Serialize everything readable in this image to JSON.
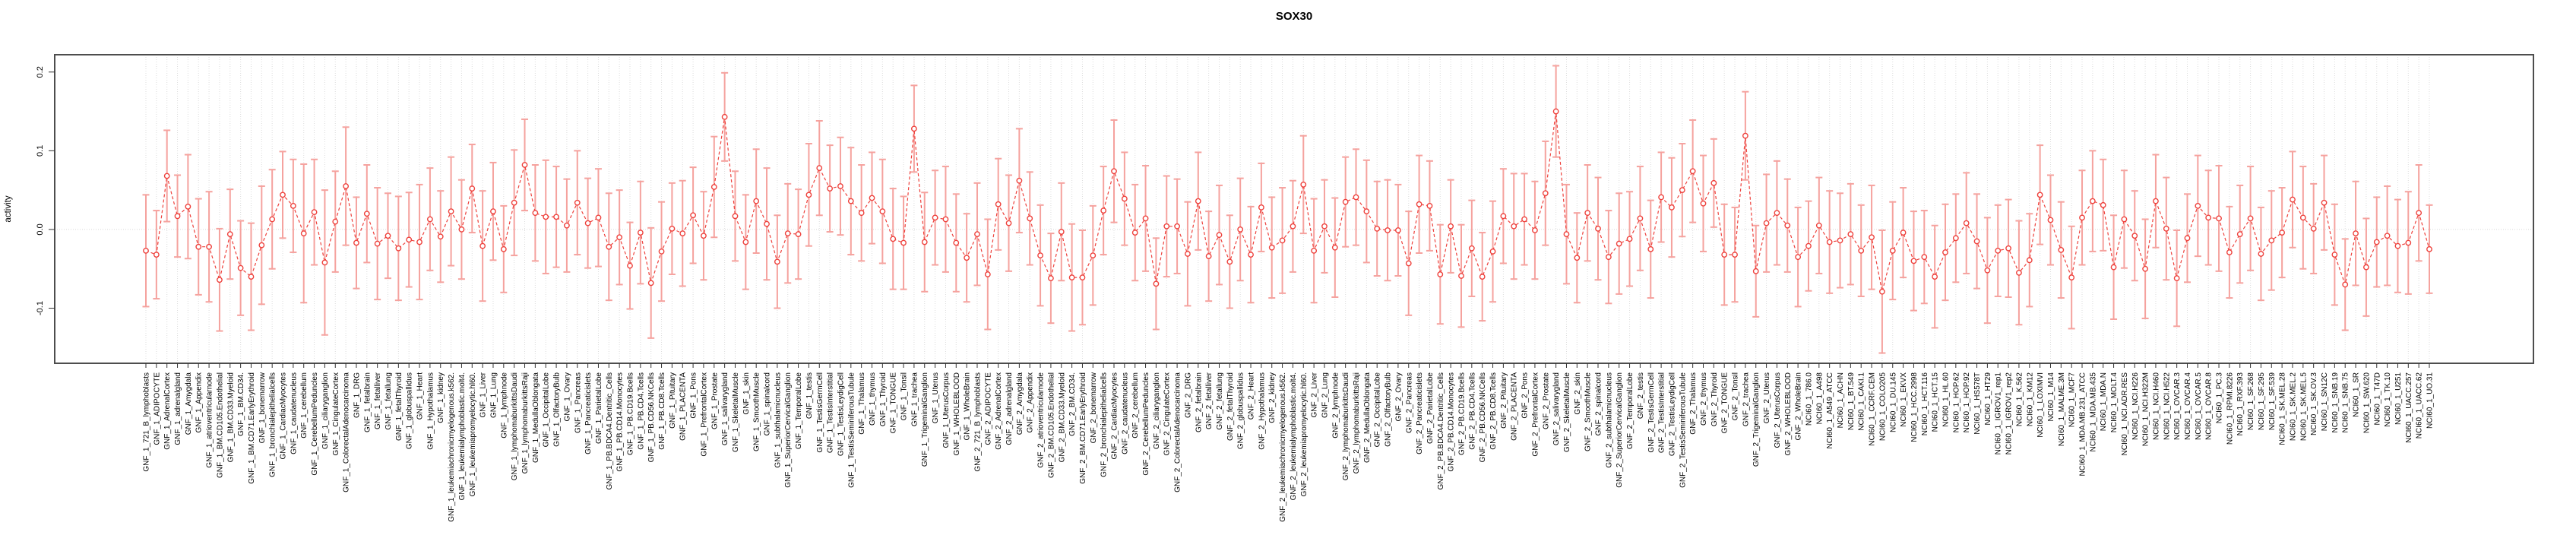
{
  "chart_data": {
    "type": "line",
    "title": "SOX30",
    "ylabel": "activity",
    "xlabel": "",
    "ylim": [
      -0.17,
      0.222
    ],
    "yticks": [
      -0.1,
      0.0,
      0.1,
      0.2
    ],
    "ytick_labels": [
      "-0.1",
      "0.0",
      "0.1",
      "0.2"
    ],
    "legend": "none",
    "grid": "dotted vertical line per category, dotted horizontal line at 0",
    "marker": "open-circle with symmetric error bars, dashed connecting line",
    "colors": {
      "point": "#ee413c",
      "line": "#ee413c",
      "errorbar": "#f5a29e",
      "grid": "#dcdcdc",
      "zero_line": "#d8d8d8",
      "axis": "#4d4d4d",
      "tick": "#333333",
      "text": "#000000",
      "background": "#ffffff"
    },
    "categories": [
      "GNF_1_721_B_lymphoblasts",
      "GNF_1_ADIPOCYTE",
      "GNF_1_AdrenalCortex",
      "GNF_1_adrenalgland",
      "GNF_1_Amygdala",
      "GNF_1_Appendix",
      "GNF_1_atrioventricularnode",
      "GNF_1_BM.CD105.Endothelial",
      "GNF_1_BM.CD33.Myeloid",
      "GNF_1_BM.CD34.",
      "GNF_1_BM.CD71.EarlyErythroid",
      "GNF_1_bonemarrow",
      "GNF_1_bronchialepithelialcells",
      "GNF_1_CardiacMyocytes",
      "GNF_1_caudatenucleus",
      "GNF_1_cerebellum",
      "GNF_1_CerebellumPeduncles",
      "GNF_1_ciliaryganglion",
      "GNF_1_CingulateCortex",
      "GNF_1_ColorectalAdenocarcinoma",
      "GNF_1_DRG",
      "GNF_1_fetalbrain",
      "GNF_1_fetalliver",
      "GNF_1_fetallung",
      "GNF_1_fetalThyroid",
      "GNF_1_globuspallidus",
      "GNF_1_Heart",
      "GNF_1_Hypothalamus",
      "GNF_1_kidney",
      "GNF_1_leukemiachronicmyelogenous.k562.",
      "GNF_1_leukemialymphoblastic.molt4.",
      "GNF_1_leukemiapromyelocytic.hl60.",
      "GNF_1_Liver",
      "GNF_1_Lung",
      "GNF_1_lymphnode",
      "GNF_1_lymphomaburkittsDaudi",
      "GNF_1_lymphomaburkittsRaji",
      "GNF_1_MedullaOblongata",
      "GNF_1_OccipitalLobe",
      "GNF_1_OlfactoryBulb",
      "GNF_1_Ovary",
      "GNF_1_Pancreas",
      "GNF_1_Pancreaticislets",
      "GNF_1_ParietalLobe",
      "GNF_1_PB.BDCA4.Dentritic_Cells",
      "GNF_1_PB.CD14.Monocytes",
      "GNF_1_PB.CD19.Bcells",
      "GNF_1_PB.CD4.Tcells",
      "GNF_1_PB.CD56.NKCells",
      "GNF_1_PB.CD8.Tcells",
      "GNF_1_Pituitary",
      "GNF_1_PLACENTA",
      "GNF_1_Pons",
      "GNF_1_PrefrontalCortex",
      "GNF_1_Prostate",
      "GNF_1_salivarygland",
      "GNF_1_SkeletalMuscle",
      "GNF_1_skin",
      "GNF_1_SmoothMuscle",
      "GNF_1_spinalcord",
      "GNF_1_subthalamicnucleus",
      "GNF_1_SuperiorCervicalGanglion",
      "GNF_1_TemporalLobe",
      "GNF_1_testis",
      "GNF_1_TestisGermCell",
      "GNF_1_TestisInterstitial",
      "GNF_1_TestisLeydigCell",
      "GNF_1_TestisSeminiferousTubule",
      "GNF_1_Thalamus",
      "GNF_1_thymus",
      "GNF_1_Thyroid",
      "GNF_1_TONGUE",
      "GNF_1_Tonsil",
      "GNF_1_trachea",
      "GNF_1_TrigeminalGanglion",
      "GNF_1_Uterus",
      "GNF_1_UterusCorpus",
      "GNF_1_WHOLEBLOOD",
      "GNF_1_WholeBrain",
      "GNF_2_721_B_lymphoblasts",
      "GNF_2_ADIPOCYTE",
      "GNF_2_AdrenalCortex",
      "GNF_2_adrenalgland",
      "GNF_2_Amygdala",
      "GNF_2_Appendix",
      "GNF_2_atrioventricularnode",
      "GNF_2_BM.CD105.Endothelial",
      "GNF_2_BM.CD33.Myeloid",
      "GNF_2_BM.CD34.",
      "GNF_2_BM.CD71.EarlyErythroid",
      "GNF_2_bonemarrow",
      "GNF_2_bronchialepithelialcells",
      "GNF_2_CardiacMyocytes",
      "GNF_2_caudatenucleus",
      "GNF_2_cerebellum",
      "GNF_2_CerebellumPeduncles",
      "GNF_2_ciliaryganglion",
      "GNF_2_CingulateCortex",
      "GNF_2_ColorectalAdenocarcinoma",
      "GNF_2_DRG",
      "GNF_2_fetalbrain",
      "GNF_2_fetalliver",
      "GNF_2_fetallung",
      "GNF_2_fetalThyroid",
      "GNF_2_globuspallidus",
      "GNF_2_Heart",
      "GNF_2_Hypothalamus",
      "GNF_2_kidney",
      "GNF_2_leukemiachronicmyelogenous.k562.",
      "GNF_2_leukemialymphoblastic.molt4.",
      "GNF_2_leukemiapromyelocytic.hl60.",
      "GNF_2_Liver",
      "GNF_2_Lung",
      "GNF_2_lymphnode",
      "GNF_2_lymphomaburkittsDaudi",
      "GNF_2_lymphomaburkittsRaji",
      "GNF_2_MedullaOblongata",
      "GNF_2_OccipitalLobe",
      "GNF_2_OlfactoryBulb",
      "GNF_2_Ovary",
      "GNF_2_Pancreas",
      "GNF_2_Pancreaticislets",
      "GNF_2_ParietalLobe",
      "GNF_2_PB.BDCA4.Dentritic_Cells",
      "GNF_2_PB.CD14.Monocytes",
      "GNF_2_PB.CD19.Bcells",
      "GNF_2_PB.CD4.Tcells",
      "GNF_2_PB.CD56.NKCells",
      "GNF_2_PB.CD8.Tcells",
      "GNF_2_Pituitary",
      "GNF_2_PLACENTA",
      "GNF_2_Pons",
      "GNF_2_PrefrontalCortex",
      "GNF_2_Prostate",
      "GNF_2_salivarygland",
      "GNF_2_SkeletalMuscle",
      "GNF_2_skin",
      "GNF_2_SmoothMuscle",
      "GNF_2_spinalcord",
      "GNF_2_subthalamicnucleus",
      "GNF_2_SuperiorCervicalGanglion",
      "GNF_2_TemporalLobe",
      "GNF_2_testis",
      "GNF_2_TestisGermCell",
      "GNF_2_TestisInterstitial",
      "GNF_2_TestisLeydigCell",
      "GNF_2_TestisSeminiferousTubule",
      "GNF_2_Thalamus",
      "GNF_2_thymus",
      "GNF_2_Thyroid",
      "GNF_2_TONGUE",
      "GNF_2_Tonsil",
      "GNF_2_trachea",
      "GNF_2_TrigeminalGanglion",
      "GNF_2_Uterus",
      "GNF_2_UterusCorpus",
      "GNF_2_WHOLEBLOOD",
      "GNF_2_WholeBrain",
      "NCI60_1_786.0",
      "NCI60_1_A498",
      "NCI60_1_A549_ATCC",
      "NCI60_1_ACHN",
      "NCI60_1_BT.549",
      "NCI60_1_CAKI.1",
      "NCI60_1_CCRF.CEM",
      "NCI60_1_COLO205",
      "NCI60_1_DU.145",
      "NCI60_1_EKVX",
      "NCI60_1_HCC.2998",
      "NCI60_1_HCT.116",
      "NCI60_1_HCT.15",
      "NCI60_1_HL.60",
      "NCI60_1_HOP.62",
      "NCI60_1_HOP.92",
      "NCI60_1_HS578T",
      "NCI60_1_HT29",
      "NCI60_1_IGROV1_rep1",
      "NCI60_1_IGROV1_rep2",
      "NCI60_1_K.562",
      "NCI60_1_KM12",
      "NCI60_1_LOXIMVI",
      "NCI60_1_M14",
      "NCI60_1_MALME.3M",
      "NCI60_1_MCF7",
      "NCI60_1_MDA.MB.231_ATCC",
      "NCI60_1_MDA.MB.435",
      "NCI60_1_MDA.N",
      "NCI60_1_MOLT.4",
      "NCI60_1_NCI.ADR.RES",
      "NCI60_1_NCI.H226",
      "NCI60_1_NCI.H322M",
      "NCI60_1_NCI.H460",
      "NCI60_1_NCI.H522",
      "NCI60_1_OVCAR.3",
      "NCI60_1_OVCAR.4",
      "NCI60_1_OVCAR.5",
      "NCI60_1_OVCAR.8",
      "NCI60_1_PC.3",
      "NCI60_1_RPMI.8226",
      "NCI60_1_RXF.393",
      "NCI60_1_SF.268",
      "NCI60_1_SF.295",
      "NCI60_1_SF.539",
      "NCI60_1_SK.MEL.28",
      "NCI60_1_SK.MEL.2",
      "NCI60_1_SK.MEL.5",
      "NCI60_1_SK.OV.3",
      "NCI60_1_SN12C",
      "NCI60_1_SNB.19",
      "NCI60_1_SNB.75",
      "NCI60_1_SR",
      "NCI60_1_SW.620",
      "NCI60_1_T47D",
      "NCI60_1_TK.10",
      "NCI60_1_U251",
      "NCI60_1_UACC.257",
      "NCI60_1_UACC.62",
      "NCI60_1_UO.31"
    ],
    "means": [
      -0.027,
      -0.032,
      0.068,
      0.017,
      0.029,
      -0.022,
      -0.022,
      -0.064,
      -0.006,
      -0.049,
      -0.06,
      -0.02,
      0.013,
      0.044,
      0.03,
      -0.005,
      0.022,
      -0.042,
      0.01,
      0.055,
      -0.017,
      0.02,
      -0.018,
      -0.008,
      -0.024,
      -0.013,
      -0.016,
      0.013,
      -0.009,
      0.023,
      0.0,
      0.052,
      -0.021,
      0.023,
      -0.025,
      0.034,
      0.082,
      0.021,
      0.016,
      0.016,
      0.005,
      0.034,
      0.008,
      0.015,
      -0.022,
      -0.01,
      -0.046,
      -0.004,
      -0.068,
      -0.028,
      0.001,
      -0.005,
      0.018,
      -0.008,
      0.054,
      0.143,
      0.017,
      -0.016,
      0.036,
      0.007,
      -0.041,
      -0.005,
      -0.006,
      0.044,
      0.078,
      0.052,
      0.055,
      0.036,
      0.021,
      0.04,
      0.023,
      -0.012,
      -0.017,
      0.128,
      -0.016,
      0.015,
      0.013,
      -0.017,
      -0.036,
      -0.006,
      -0.057,
      0.032,
      0.008,
      0.062,
      0.014,
      -0.033,
      -0.062,
      -0.003,
      -0.061,
      -0.061,
      -0.033,
      0.024,
      0.074,
      0.039,
      -0.004,
      0.014,
      -0.069,
      0.004,
      0.004,
      -0.031,
      0.036,
      -0.034,
      -0.007,
      -0.041,
      0.0,
      -0.032,
      0.028,
      -0.023,
      -0.014,
      0.004,
      0.057,
      -0.027,
      0.004,
      -0.023,
      0.035,
      0.041,
      0.023,
      0.001,
      -0.001,
      -0.001,
      -0.043,
      0.032,
      0.03,
      -0.057,
      0.004,
      -0.059,
      -0.024,
      -0.06,
      -0.028,
      0.017,
      0.004,
      0.013,
      -0.001,
      0.046,
      0.15,
      -0.006,
      -0.036,
      0.021,
      0.001,
      -0.035,
      -0.018,
      -0.012,
      0.014,
      -0.025,
      0.041,
      0.028,
      0.05,
      0.074,
      0.033,
      0.059,
      -0.032,
      -0.032,
      0.119,
      -0.053,
      0.008,
      0.021,
      0.005,
      -0.035,
      -0.021,
      0.005,
      -0.016,
      -0.014,
      -0.006,
      -0.027,
      -0.01,
      -0.079,
      -0.027,
      -0.004,
      -0.04,
      -0.035,
      -0.06,
      -0.029,
      -0.011,
      0.008,
      -0.015,
      -0.052,
      -0.027,
      -0.024,
      -0.055,
      -0.039,
      0.044,
      0.012,
      -0.026,
      -0.061,
      0.015,
      0.036,
      0.031,
      -0.048,
      0.013,
      -0.008,
      -0.05,
      0.036,
      0.001,
      -0.062,
      -0.011,
      0.03,
      0.015,
      0.014,
      -0.029,
      -0.006,
      0.014,
      -0.031,
      -0.014,
      -0.004,
      0.038,
      0.015,
      0.001,
      0.034,
      -0.032,
      -0.07,
      -0.005,
      -0.048,
      -0.016,
      -0.008,
      -0.021,
      -0.017,
      0.021,
      -0.025
    ],
    "errors": [
      0.071,
      0.056,
      0.058,
      0.052,
      0.066,
      0.061,
      0.07,
      0.065,
      0.057,
      0.06,
      0.068,
      0.075,
      0.063,
      0.055,
      0.059,
      0.088,
      0.067,
      0.092,
      0.064,
      0.075,
      0.058,
      0.062,
      0.071,
      0.054,
      0.066,
      0.06,
      0.073,
      0.065,
      0.058,
      0.069,
      0.063,
      0.056,
      0.07,
      0.062,
      0.055,
      0.067,
      0.058,
      0.061,
      0.072,
      0.064,
      0.059,
      0.066,
      0.057,
      0.062,
      0.068,
      0.06,
      0.055,
      0.065,
      0.07,
      0.063,
      0.058,
      0.067,
      0.061,
      0.056,
      0.064,
      0.056,
      0.057,
      0.06,
      0.066,
      0.071,
      0.059,
      0.063,
      0.057,
      0.065,
      0.06,
      0.055,
      0.062,
      0.068,
      0.061,
      0.058,
      0.066,
      0.064,
      0.059,
      0.055,
      0.063,
      0.06,
      0.067,
      0.062,
      0.056,
      0.065,
      0.07,
      0.058,
      0.061,
      0.066,
      0.059,
      0.064,
      0.057,
      0.062,
      0.068,
      0.06,
      0.063,
      0.056,
      0.065,
      0.059,
      0.061,
      0.067,
      0.058,
      0.064,
      0.06,
      0.066,
      0.062,
      0.057,
      0.063,
      0.059,
      0.065,
      0.061,
      0.056,
      0.064,
      0.067,
      0.058,
      0.062,
      0.066,
      0.059,
      0.063,
      0.057,
      0.061,
      0.065,
      0.06,
      0.064,
      0.058,
      0.066,
      0.062,
      0.057,
      0.063,
      0.059,
      0.065,
      0.061,
      0.056,
      0.064,
      0.06,
      0.067,
      0.058,
      0.062,
      0.066,
      0.058,
      0.063,
      0.057,
      0.061,
      0.065,
      0.059,
      0.064,
      0.06,
      0.066,
      0.062,
      0.057,
      0.063,
      0.059,
      0.065,
      0.061,
      0.056,
      0.064,
      0.06,
      0.056,
      0.058,
      0.062,
      0.066,
      0.059,
      0.063,
      0.057,
      0.061,
      0.065,
      0.06,
      0.064,
      0.058,
      0.066,
      0.078,
      0.062,
      0.057,
      0.063,
      0.059,
      0.065,
      0.061,
      0.056,
      0.064,
      0.06,
      0.067,
      0.058,
      0.062,
      0.066,
      0.059,
      0.063,
      0.057,
      0.061,
      0.065,
      0.06,
      0.064,
      0.058,
      0.066,
      0.062,
      0.057,
      0.063,
      0.059,
      0.065,
      0.061,
      0.056,
      0.064,
      0.06,
      0.067,
      0.058,
      0.062,
      0.066,
      0.059,
      0.063,
      0.057,
      0.061,
      0.065,
      0.057,
      0.06,
      0.064,
      0.058,
      0.066,
      0.062,
      0.057,
      0.063,
      0.059,
      0.065,
      0.061,
      0.056
    ]
  }
}
